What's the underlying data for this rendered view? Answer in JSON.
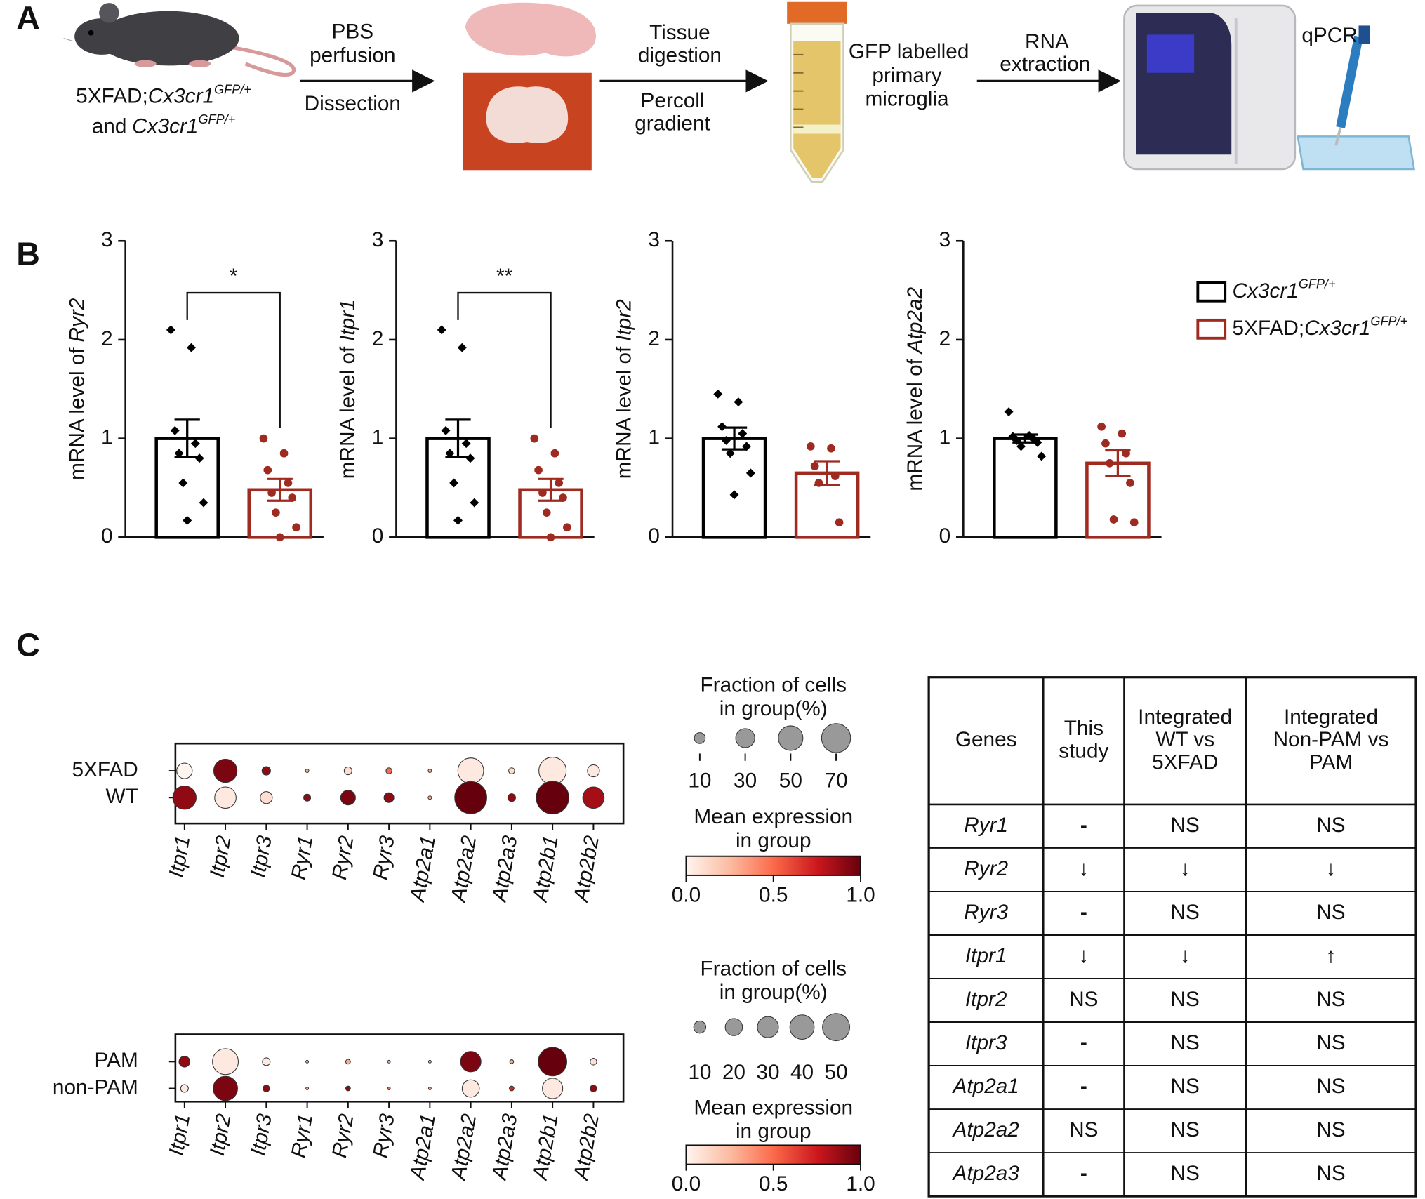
{
  "panel_labels": [
    "A",
    "B",
    "C"
  ],
  "workflow": {
    "source": [
      [
        "5XFAD;",
        "Cx3cr1",
        "GFP/+"
      ],
      [
        "and",
        "Cx3cr1",
        "GFP/+"
      ]
    ],
    "step1_above": [
      "PBS",
      "perfusion"
    ],
    "step1_below": "Dissection",
    "step2_above": [
      "Tissue",
      "digestion"
    ],
    "step2_below": [
      "Percoll",
      "gradient"
    ],
    "cells": [
      "GFP labelled",
      "primary",
      "microglia"
    ],
    "step3_above": [
      "RNA",
      "extraction"
    ],
    "assay": "qPCR"
  },
  "legend": {
    "items": [
      {
        "parts": [
          "Cx3cr1",
          "GFP/+"
        ],
        "color": "#000000"
      },
      {
        "parts": [
          "5XFAD;",
          "Cx3cr1",
          "GFP/+"
        ],
        "color": "#9e2a20"
      }
    ]
  },
  "chart_data": [
    {
      "type": "bar",
      "ylabel": "mRNA level of",
      "ylabel_gene": "Ryr2",
      "ylim": [
        0,
        3
      ],
      "yticks": [
        0,
        1,
        2,
        3
      ],
      "significance": "*",
      "series": [
        {
          "color": "#000000",
          "marker": "diamond",
          "values": [
            1.0
          ],
          "errors": [
            0.19
          ],
          "points": [
            2.1,
            1.92,
            1.08,
            0.95,
            0.85,
            0.8,
            0.55,
            0.35,
            0.17
          ]
        },
        {
          "color": "#9e2a20",
          "marker": "circle",
          "values": [
            0.48
          ],
          "errors": [
            0.11
          ],
          "points": [
            1.0,
            0.85,
            0.68,
            0.55,
            0.45,
            0.4,
            0.25,
            0.1,
            0.0
          ]
        }
      ]
    },
    {
      "type": "bar",
      "ylabel": "mRNA level of",
      "ylabel_gene": "Itpr1",
      "ylim": [
        0,
        3
      ],
      "yticks": [
        0,
        1,
        2,
        3
      ],
      "significance": "**",
      "series": [
        {
          "color": "#000000",
          "marker": "diamond",
          "values": [
            1.0
          ],
          "errors": [
            0.19
          ],
          "points": [
            2.1,
            1.92,
            1.08,
            0.95,
            0.85,
            0.8,
            0.55,
            0.35,
            0.17
          ]
        },
        {
          "color": "#9e2a20",
          "marker": "circle",
          "values": [
            0.48
          ],
          "errors": [
            0.11
          ],
          "points": [
            1.0,
            0.85,
            0.68,
            0.55,
            0.45,
            0.4,
            0.25,
            0.1,
            0.0
          ]
        }
      ]
    },
    {
      "type": "bar",
      "ylabel": "mRNA level of",
      "ylabel_gene": "Itpr2",
      "ylim": [
        0,
        3
      ],
      "yticks": [
        0,
        1,
        2,
        3
      ],
      "series": [
        {
          "color": "#000000",
          "marker": "diamond",
          "values": [
            1.0
          ],
          "errors": [
            0.11
          ],
          "points": [
            1.45,
            1.37,
            1.12,
            1.05,
            0.98,
            0.92,
            0.85,
            0.65,
            0.43
          ]
        },
        {
          "color": "#9e2a20",
          "marker": "circle",
          "values": [
            0.65
          ],
          "errors": [
            0.12
          ],
          "points": [
            0.92,
            0.9,
            0.72,
            0.62,
            0.55,
            0.15
          ]
        }
      ]
    },
    {
      "type": "bar",
      "ylabel": "mRNA level of",
      "ylabel_gene": "Atp2a2",
      "ylim": [
        0,
        3
      ],
      "yticks": [
        0,
        1,
        2,
        3
      ],
      "series": [
        {
          "color": "#000000",
          "marker": "diamond",
          "values": [
            1.0
          ],
          "errors": [
            0.04
          ],
          "points": [
            1.27,
            1.03,
            1.02,
            1.0,
            0.98,
            0.96,
            0.92,
            0.82
          ]
        },
        {
          "color": "#9e2a20",
          "marker": "circle",
          "values": [
            0.75
          ],
          "errors": [
            0.13
          ],
          "points": [
            1.12,
            1.05,
            0.95,
            0.85,
            0.75,
            0.55,
            0.18,
            0.15
          ]
        }
      ]
    },
    {
      "type": "dot",
      "categories": [
        "Itpr1",
        "Itpr2",
        "Itpr3",
        "Ryr1",
        "Ryr2",
        "Ryr3",
        "Atp2a1",
        "Atp2a2",
        "Atp2a3",
        "Atp2b1",
        "Atp2b2"
      ],
      "rows": [
        "5XFAD",
        "WT"
      ],
      "fraction": [
        [
          20,
          45,
          6,
          1,
          5,
          3,
          1,
          55,
          3,
          62,
          12
        ],
        [
          45,
          38,
          12,
          4,
          18,
          8,
          1,
          85,
          5,
          88,
          38
        ]
      ],
      "expression": [
        [
          0.0,
          0.95,
          0.9,
          0.3,
          0.1,
          0.5,
          0.3,
          0.05,
          0.1,
          0.05,
          0.05
        ],
        [
          0.9,
          0.05,
          0.1,
          0.9,
          0.95,
          0.9,
          0.3,
          1.0,
          0.9,
          1.0,
          0.85
        ]
      ],
      "size_legend": {
        "title": [
          "Fraction of cells",
          "in group(%)"
        ],
        "values": [
          10,
          30,
          50,
          70
        ]
      },
      "color_legend": {
        "title": [
          "Mean expression",
          "in group"
        ],
        "clim": [
          0,
          1
        ],
        "ticks": [
          {
            "value": 0,
            "label": "0.0"
          },
          {
            "value": 0.5,
            "label": "0.5"
          },
          {
            "value": 1,
            "label": "1.0"
          }
        ]
      },
      "colors": [
        "#fff5f0",
        "#fcbba1",
        "#fb6a4a",
        "#cb181d",
        "#67000d"
      ]
    },
    {
      "type": "dot",
      "categories": [
        "Itpr1",
        "Itpr2",
        "Itpr3",
        "Ryr1",
        "Ryr2",
        "Ryr3",
        "Atp2a1",
        "Atp2a2",
        "Atp2a3",
        "Atp2b1",
        "Atp2b2"
      ],
      "rows": [
        "PAM",
        "non-PAM"
      ],
      "fraction": [
        [
          8,
          45,
          4,
          0.5,
          1.5,
          0.5,
          0.5,
          28,
          1,
          55,
          3
        ],
        [
          4,
          40,
          3,
          0.5,
          1.5,
          0.5,
          0.5,
          20,
          1.5,
          28,
          3
        ]
      ],
      "expression": [
        [
          0.9,
          0.05,
          0.05,
          0.3,
          0.3,
          0.3,
          0.3,
          0.95,
          0.3,
          1.0,
          0.1
        ],
        [
          0.05,
          0.95,
          0.9,
          0.3,
          0.9,
          0.5,
          0.3,
          0.05,
          0.7,
          0.05,
          0.9
        ]
      ],
      "size_legend": {
        "title": [
          "Fraction of cells",
          "in group(%)"
        ],
        "values": [
          10,
          20,
          30,
          40,
          50
        ]
      },
      "color_legend": {
        "title": [
          "Mean expression",
          "in group"
        ],
        "clim": [
          0,
          1
        ],
        "ticks": [
          {
            "value": 0,
            "label": "0.0"
          },
          {
            "value": 0.5,
            "label": "0.5"
          },
          {
            "value": 1,
            "label": "1.0"
          }
        ]
      },
      "colors": [
        "#fff5f0",
        "#fcbba1",
        "#fb6a4a",
        "#cb181d",
        "#67000d"
      ]
    }
  ],
  "table": {
    "header": [
      [
        "Genes"
      ],
      [
        "This",
        "study"
      ],
      [
        "Integrated",
        "WT vs",
        "5XFAD"
      ],
      [
        "Integrated",
        "Non-PAM vs",
        "PAM"
      ]
    ],
    "rows": [
      [
        "Ryr1",
        "-",
        "NS",
        "NS"
      ],
      [
        "Ryr2",
        "↓",
        "↓",
        "↓"
      ],
      [
        "Ryr3",
        "-",
        "NS",
        "NS"
      ],
      [
        "Itpr1",
        "↓",
        "↓",
        "↑"
      ],
      [
        "Itpr2",
        "NS",
        "NS",
        "NS"
      ],
      [
        "Itpr3",
        "-",
        "NS",
        "NS"
      ],
      [
        "Atp2a1",
        "-",
        "NS",
        "NS"
      ],
      [
        "Atp2a2",
        "NS",
        "NS",
        "NS"
      ],
      [
        "Atp2a3",
        "-",
        "NS",
        "NS"
      ]
    ]
  }
}
